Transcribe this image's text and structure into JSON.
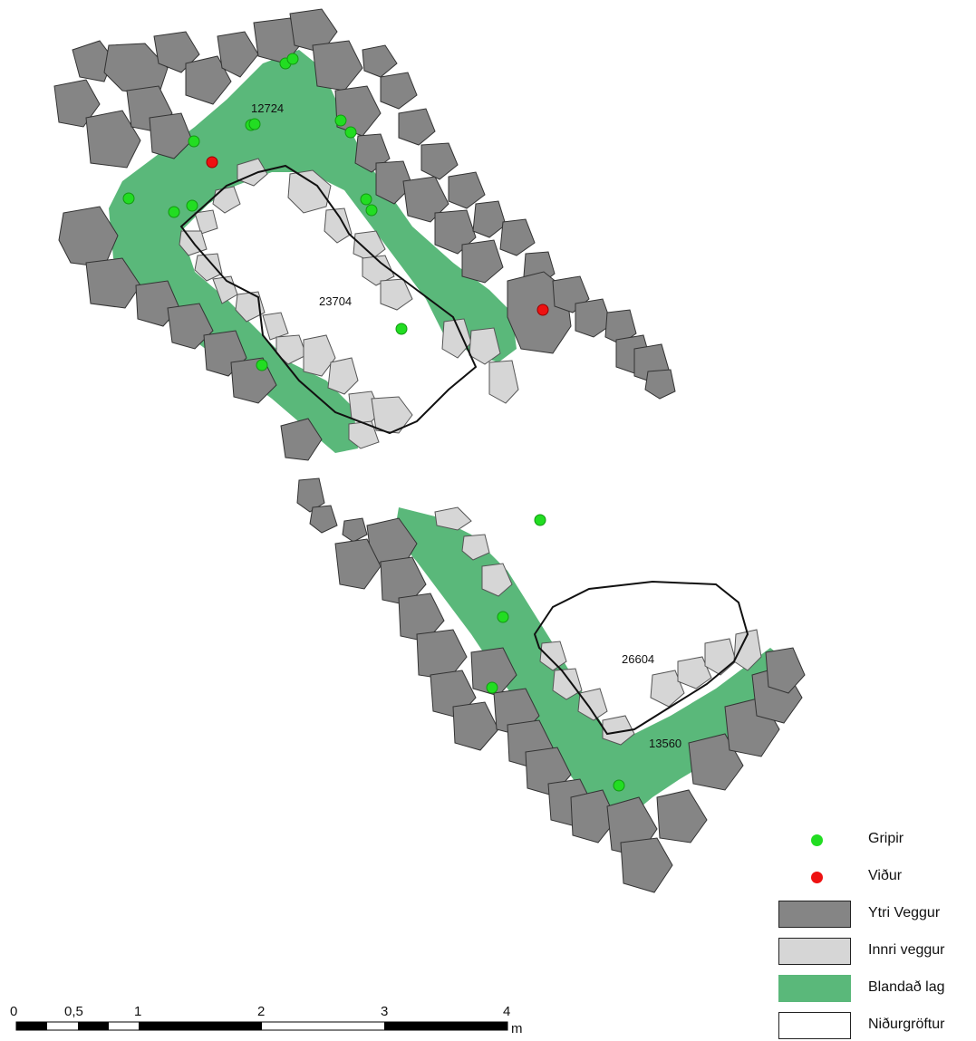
{
  "map": {
    "feature_labels": {
      "northern_mixed": "12724",
      "northern_excavation": "23704",
      "southern_excavation": "26604",
      "southern_mixed": "13560"
    }
  },
  "legend": {
    "items": [
      {
        "label": "Gripir",
        "symbol": "green-dot",
        "color": "#22dd22"
      },
      {
        "label": "Viður",
        "symbol": "red-dot",
        "color": "#ee1111"
      },
      {
        "label": "Ytri Veggur",
        "symbol": "dark-grey-box",
        "color": "#858585"
      },
      {
        "label": "Innri veggur",
        "symbol": "light-grey-box",
        "color": "#d6d6d6"
      },
      {
        "label": "Blandað lag",
        "symbol": "green-box",
        "color": "#5ab87a"
      },
      {
        "label": "Niðurgröftur",
        "symbol": "outline-box",
        "color": "#ffffff"
      }
    ]
  },
  "scale_bar": {
    "ticks": [
      "0",
      "0,5",
      "1",
      "2",
      "3",
      "4"
    ],
    "unit": "m"
  },
  "colors": {
    "outer_wall": "#858585",
    "inner_wall": "#d6d6d6",
    "mixed_layer": "#5ab87a",
    "artifact": "#22dd22",
    "wood": "#ee1111"
  }
}
